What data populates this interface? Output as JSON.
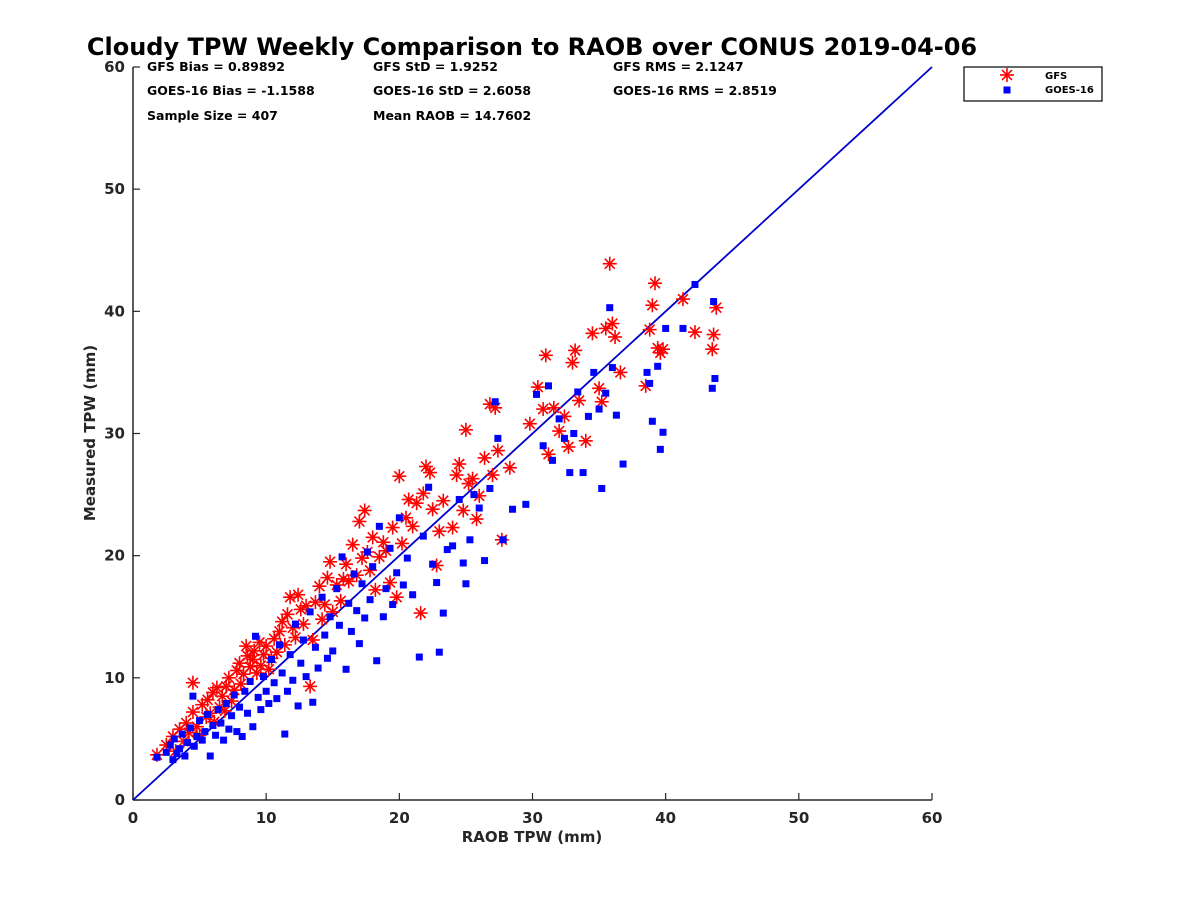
{
  "chart_data": {
    "type": "scatter",
    "title": "Cloudy TPW Weekly Comparison to RAOB over CONUS 2019-04-06",
    "xlabel": "RAOB TPW (mm)",
    "ylabel": "Measured TPW (mm)",
    "xlim": [
      0,
      60
    ],
    "ylim": [
      0,
      60
    ],
    "xticks": [
      0,
      10,
      20,
      30,
      40,
      50,
      60
    ],
    "yticks": [
      0,
      10,
      20,
      30,
      40,
      50,
      60
    ],
    "grid": false,
    "legend_position": "top-right-outside",
    "reference_line": {
      "x": [
        0,
        60
      ],
      "y": [
        0,
        60
      ],
      "color": "#0000cc"
    },
    "stats": [
      [
        "GFS Bias = 0.89892",
        "GFS StD = 1.9252",
        "GFS RMS = 2.1247"
      ],
      [
        "GOES-16 Bias = -1.1588",
        "GOES-16 StD = 2.6058",
        "GOES-16 RMS = 2.8519"
      ],
      [
        "Sample Size = 407",
        "Mean RAOB = 14.7602",
        ""
      ]
    ],
    "series": [
      {
        "name": "GFS",
        "marker": "asterisk",
        "color": "#ff0000",
        "points": [
          [
            1.8,
            3.7
          ],
          [
            2.5,
            4.5
          ],
          [
            3.0,
            5.2
          ],
          [
            3.2,
            4.0
          ],
          [
            3.5,
            5.8
          ],
          [
            3.8,
            4.8
          ],
          [
            4.0,
            6.3
          ],
          [
            4.2,
            5.5
          ],
          [
            4.5,
            9.6
          ],
          [
            4.5,
            7.2
          ],
          [
            4.8,
            6.0
          ],
          [
            5.0,
            5.3
          ],
          [
            5.2,
            7.8
          ],
          [
            5.5,
            6.8
          ],
          [
            5.6,
            8.2
          ],
          [
            5.8,
            7.1
          ],
          [
            6.0,
            8.8
          ],
          [
            6.1,
            6.4
          ],
          [
            6.3,
            9.2
          ],
          [
            6.5,
            7.6
          ],
          [
            6.7,
            8.5
          ],
          [
            6.9,
            7.3
          ],
          [
            7.0,
            9.3
          ],
          [
            7.2,
            10.0
          ],
          [
            7.4,
            8.1
          ],
          [
            7.6,
            9.0
          ],
          [
            7.8,
            10.6
          ],
          [
            8.0,
            11.2
          ],
          [
            8.1,
            9.5
          ],
          [
            8.3,
            10.3
          ],
          [
            8.5,
            12.6
          ],
          [
            8.6,
            11.8
          ],
          [
            8.8,
            10.9
          ],
          [
            9.0,
            11.5
          ],
          [
            9.1,
            12.2
          ],
          [
            9.3,
            10.4
          ],
          [
            9.5,
            12.9
          ],
          [
            9.6,
            11.0
          ],
          [
            9.8,
            11.9
          ],
          [
            10.0,
            12.6
          ],
          [
            10.2,
            10.7
          ],
          [
            10.4,
            11.6
          ],
          [
            10.6,
            13.2
          ],
          [
            10.8,
            12.1
          ],
          [
            11.0,
            13.8
          ],
          [
            11.2,
            14.6
          ],
          [
            11.4,
            12.7
          ],
          [
            11.6,
            15.2
          ],
          [
            11.8,
            16.6
          ],
          [
            12.0,
            14.1
          ],
          [
            12.2,
            13.3
          ],
          [
            12.4,
            16.8
          ],
          [
            12.6,
            15.6
          ],
          [
            12.8,
            14.4
          ],
          [
            13.0,
            15.9
          ],
          [
            13.3,
            9.3
          ],
          [
            13.5,
            13.1
          ],
          [
            13.7,
            16.2
          ],
          [
            14.0,
            17.5
          ],
          [
            14.2,
            14.8
          ],
          [
            14.4,
            16.0
          ],
          [
            14.6,
            18.2
          ],
          [
            14.8,
            19.5
          ],
          [
            15.0,
            15.4
          ],
          [
            15.3,
            17.6
          ],
          [
            15.6,
            16.3
          ],
          [
            15.8,
            18.1
          ],
          [
            16.0,
            19.3
          ],
          [
            16.2,
            17.9
          ],
          [
            16.5,
            20.9
          ],
          [
            16.8,
            18.4
          ],
          [
            17.0,
            22.8
          ],
          [
            17.2,
            19.8
          ],
          [
            17.4,
            23.7
          ],
          [
            17.6,
            20.3
          ],
          [
            17.8,
            18.8
          ],
          [
            18.0,
            21.5
          ],
          [
            18.2,
            17.2
          ],
          [
            18.5,
            19.9
          ],
          [
            18.8,
            21.1
          ],
          [
            19.0,
            20.4
          ],
          [
            19.3,
            17.8
          ],
          [
            19.5,
            22.3
          ],
          [
            19.8,
            16.6
          ],
          [
            20.0,
            26.5
          ],
          [
            20.2,
            21.0
          ],
          [
            20.5,
            23.1
          ],
          [
            20.7,
            24.6
          ],
          [
            21.0,
            22.4
          ],
          [
            21.3,
            24.3
          ],
          [
            21.6,
            15.3
          ],
          [
            21.8,
            25.1
          ],
          [
            22.0,
            27.3
          ],
          [
            22.3,
            26.8
          ],
          [
            22.5,
            23.8
          ],
          [
            22.8,
            19.2
          ],
          [
            23.0,
            22.0
          ],
          [
            23.3,
            24.5
          ],
          [
            24.0,
            22.3
          ],
          [
            24.3,
            26.6
          ],
          [
            24.5,
            27.5
          ],
          [
            24.8,
            23.7
          ],
          [
            25.0,
            30.3
          ],
          [
            25.2,
            25.9
          ],
          [
            25.5,
            26.3
          ],
          [
            25.8,
            23.0
          ],
          [
            26.0,
            24.9
          ],
          [
            26.4,
            28.0
          ],
          [
            26.8,
            32.4
          ],
          [
            27.0,
            26.6
          ],
          [
            27.2,
            32.1
          ],
          [
            27.4,
            28.6
          ],
          [
            27.7,
            21.3
          ],
          [
            28.3,
            27.2
          ],
          [
            29.8,
            30.8
          ],
          [
            30.4,
            33.8
          ],
          [
            30.8,
            32.0
          ],
          [
            31.0,
            36.4
          ],
          [
            31.2,
            28.3
          ],
          [
            31.6,
            32.1
          ],
          [
            32.0,
            30.2
          ],
          [
            32.4,
            31.4
          ],
          [
            32.7,
            28.9
          ],
          [
            33.0,
            35.8
          ],
          [
            33.2,
            36.8
          ],
          [
            33.5,
            32.7
          ],
          [
            34.0,
            29.4
          ],
          [
            34.5,
            38.2
          ],
          [
            35.0,
            33.7
          ],
          [
            35.2,
            32.6
          ],
          [
            35.5,
            38.6
          ],
          [
            35.8,
            43.9
          ],
          [
            36.0,
            39.0
          ],
          [
            36.2,
            37.9
          ],
          [
            36.6,
            35.0
          ],
          [
            38.5,
            33.9
          ],
          [
            38.8,
            38.5
          ],
          [
            39.0,
            40.5
          ],
          [
            39.2,
            42.3
          ],
          [
            39.4,
            37.0
          ],
          [
            39.6,
            36.6
          ],
          [
            39.8,
            36.9
          ],
          [
            41.3,
            41.0
          ],
          [
            42.2,
            38.3
          ],
          [
            43.5,
            36.9
          ],
          [
            43.6,
            38.1
          ],
          [
            43.8,
            40.3
          ]
        ]
      },
      {
        "name": "GOES-16",
        "marker": "square",
        "color": "#0000ff",
        "points": [
          [
            1.8,
            3.5
          ],
          [
            2.5,
            3.9
          ],
          [
            2.8,
            4.5
          ],
          [
            3.0,
            3.3
          ],
          [
            3.1,
            5.0
          ],
          [
            3.3,
            3.8
          ],
          [
            3.5,
            4.2
          ],
          [
            3.7,
            5.4
          ],
          [
            3.9,
            3.6
          ],
          [
            4.1,
            4.7
          ],
          [
            4.3,
            5.9
          ],
          [
            4.5,
            8.5
          ],
          [
            4.6,
            4.4
          ],
          [
            4.8,
            5.2
          ],
          [
            5.0,
            6.5
          ],
          [
            5.2,
            4.9
          ],
          [
            5.4,
            5.6
          ],
          [
            5.6,
            7.0
          ],
          [
            5.8,
            3.6
          ],
          [
            6.0,
            6.1
          ],
          [
            6.2,
            5.3
          ],
          [
            6.4,
            7.4
          ],
          [
            6.6,
            6.3
          ],
          [
            6.8,
            4.9
          ],
          [
            7.0,
            7.9
          ],
          [
            7.2,
            5.8
          ],
          [
            7.4,
            6.9
          ],
          [
            7.6,
            8.6
          ],
          [
            7.8,
            5.6
          ],
          [
            8.0,
            7.6
          ],
          [
            8.2,
            5.2
          ],
          [
            8.4,
            8.9
          ],
          [
            8.6,
            7.1
          ],
          [
            8.8,
            9.7
          ],
          [
            9.0,
            6.0
          ],
          [
            9.2,
            13.4
          ],
          [
            9.4,
            8.4
          ],
          [
            9.6,
            7.4
          ],
          [
            9.8,
            10.1
          ],
          [
            10.0,
            8.9
          ],
          [
            10.2,
            7.9
          ],
          [
            10.4,
            11.5
          ],
          [
            10.6,
            9.6
          ],
          [
            10.8,
            8.3
          ],
          [
            11.0,
            12.7
          ],
          [
            11.2,
            10.4
          ],
          [
            11.4,
            5.4
          ],
          [
            11.6,
            8.9
          ],
          [
            11.8,
            11.9
          ],
          [
            12.0,
            9.8
          ],
          [
            12.2,
            14.4
          ],
          [
            12.4,
            7.7
          ],
          [
            12.6,
            11.2
          ],
          [
            12.8,
            13.1
          ],
          [
            13.0,
            10.1
          ],
          [
            13.3,
            15.4
          ],
          [
            13.5,
            8.0
          ],
          [
            13.7,
            12.5
          ],
          [
            13.9,
            10.8
          ],
          [
            14.2,
            16.6
          ],
          [
            14.4,
            13.5
          ],
          [
            14.6,
            11.6
          ],
          [
            14.8,
            15.0
          ],
          [
            15.0,
            12.2
          ],
          [
            15.3,
            17.3
          ],
          [
            15.5,
            14.3
          ],
          [
            15.7,
            19.9
          ],
          [
            16.0,
            10.7
          ],
          [
            16.2,
            16.1
          ],
          [
            16.4,
            13.8
          ],
          [
            16.6,
            18.5
          ],
          [
            16.8,
            15.5
          ],
          [
            17.0,
            12.8
          ],
          [
            17.2,
            17.7
          ],
          [
            17.4,
            14.9
          ],
          [
            17.6,
            20.3
          ],
          [
            17.8,
            16.4
          ],
          [
            18.0,
            19.1
          ],
          [
            18.3,
            11.4
          ],
          [
            18.5,
            22.4
          ],
          [
            18.8,
            15.0
          ],
          [
            19.0,
            17.3
          ],
          [
            19.3,
            20.6
          ],
          [
            19.5,
            16.0
          ],
          [
            19.8,
            18.6
          ],
          [
            20.0,
            23.1
          ],
          [
            20.3,
            17.6
          ],
          [
            20.6,
            19.8
          ],
          [
            21.0,
            16.8
          ],
          [
            21.5,
            11.7
          ],
          [
            21.8,
            21.6
          ],
          [
            22.2,
            25.6
          ],
          [
            22.5,
            19.3
          ],
          [
            22.8,
            17.8
          ],
          [
            23.0,
            12.1
          ],
          [
            23.3,
            15.3
          ],
          [
            23.6,
            20.5
          ],
          [
            24.0,
            20.8
          ],
          [
            24.5,
            24.6
          ],
          [
            24.8,
            19.4
          ],
          [
            25.0,
            17.7
          ],
          [
            25.3,
            21.3
          ],
          [
            25.6,
            25.0
          ],
          [
            26.0,
            23.9
          ],
          [
            26.4,
            19.6
          ],
          [
            26.8,
            25.5
          ],
          [
            27.2,
            32.6
          ],
          [
            27.4,
            29.6
          ],
          [
            27.8,
            21.3
          ],
          [
            28.5,
            23.8
          ],
          [
            29.5,
            24.2
          ],
          [
            30.3,
            33.2
          ],
          [
            30.8,
            29.0
          ],
          [
            31.2,
            33.9
          ],
          [
            31.5,
            27.8
          ],
          [
            32.0,
            31.2
          ],
          [
            32.4,
            29.6
          ],
          [
            32.8,
            26.8
          ],
          [
            33.1,
            30.0
          ],
          [
            33.4,
            33.4
          ],
          [
            33.8,
            26.8
          ],
          [
            34.2,
            31.4
          ],
          [
            34.6,
            35.0
          ],
          [
            35.0,
            32.0
          ],
          [
            35.2,
            25.5
          ],
          [
            35.5,
            33.3
          ],
          [
            35.8,
            40.3
          ],
          [
            36.0,
            35.4
          ],
          [
            36.3,
            31.5
          ],
          [
            36.8,
            27.5
          ],
          [
            38.6,
            35.0
          ],
          [
            38.8,
            34.1
          ],
          [
            39.0,
            31.0
          ],
          [
            39.4,
            35.5
          ],
          [
            39.6,
            28.7
          ],
          [
            39.8,
            30.1
          ],
          [
            40.0,
            38.6
          ],
          [
            41.3,
            38.6
          ],
          [
            42.2,
            42.2
          ],
          [
            43.5,
            33.7
          ],
          [
            43.6,
            40.8
          ],
          [
            43.7,
            34.5
          ]
        ]
      }
    ]
  }
}
